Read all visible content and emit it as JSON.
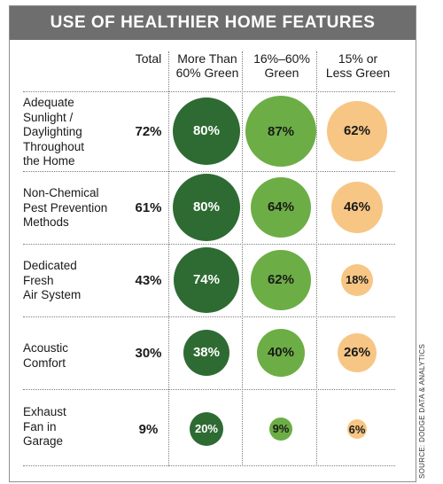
{
  "chart_data": {
    "type": "table",
    "title": "USE OF HEALTHIER HOME FEATURES",
    "columns": [
      "Total",
      "More Than 60% Green",
      "16%–60% Green",
      "15% or Less Green"
    ],
    "rows": [
      {
        "label": "Adequate Sunlight / Daylighting Throughout the Home",
        "total": "72%",
        "values": [
          80,
          87,
          62
        ]
      },
      {
        "label": "Non-Chemical Pest Prevention Methods",
        "total": "61%",
        "values": [
          80,
          64,
          46
        ]
      },
      {
        "label": "Dedicated Fresh Air System",
        "total": "43%",
        "values": [
          74,
          62,
          18
        ]
      },
      {
        "label": "Acoustic Comfort",
        "total": "30%",
        "values": [
          38,
          40,
          26
        ]
      },
      {
        "label": "Exhaust Fan in Garage",
        "total": "9%",
        "values": [
          20,
          9,
          6
        ]
      }
    ],
    "colors": [
      "#2e6b33",
      "#6cae45",
      "#f7c684"
    ],
    "source": "SOURCE: DODGE DATA & ANALYTICS"
  },
  "header": {
    "title": "USE OF HEALTHIER HOME FEATURES",
    "col_total": "Total",
    "col_high_1": "More Than",
    "col_high_2": "60% Green",
    "col_mid_1": "16%–60%",
    "col_mid_2": "Green",
    "col_low_1": "15% or",
    "col_low_2": "Less Green"
  },
  "rows": [
    {
      "label_lines": [
        "Adequate",
        "Sunlight /",
        "Daylighting",
        "Throughout",
        "the Home"
      ],
      "total": "72%",
      "values": [
        "80%",
        "87%",
        "62%"
      ]
    },
    {
      "label_lines": [
        "Non-Chemical",
        "Pest Prevention",
        "Methods"
      ],
      "total": "61%",
      "values": [
        "80%",
        "64%",
        "46%"
      ]
    },
    {
      "label_lines": [
        "Dedicated",
        "Fresh",
        "Air System"
      ],
      "total": "43%",
      "values": [
        "74%",
        "62%",
        "18%"
      ]
    },
    {
      "label_lines": [
        "Acoustic",
        "Comfort"
      ],
      "total": "30%",
      "values": [
        "38%",
        "40%",
        "26%"
      ]
    },
    {
      "label_lines": [
        "Exhaust",
        "Fan in",
        "Garage"
      ],
      "total": "9%",
      "values": [
        "20%",
        "9%",
        "6%"
      ]
    }
  ],
  "source": "SOURCE: DODGE DATA & ANALYTICS"
}
